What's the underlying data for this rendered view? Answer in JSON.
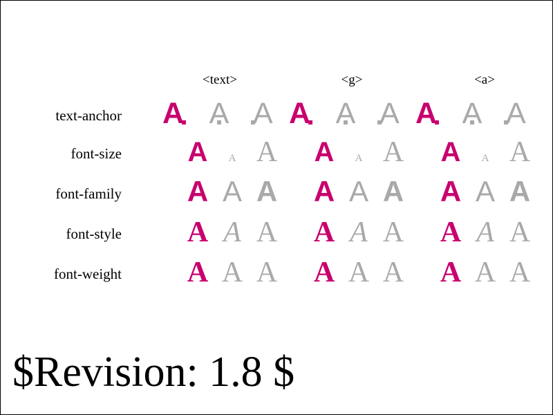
{
  "columns": [
    "<text>",
    "<g>",
    "<a>"
  ],
  "rows": [
    {
      "id": "text-anchor",
      "label": "text-anchor"
    },
    {
      "id": "font-size",
      "label": "font-size"
    },
    {
      "id": "font-family",
      "label": "font-family"
    },
    {
      "id": "font-style",
      "label": "font-style"
    },
    {
      "id": "font-weight",
      "label": "font-weight"
    }
  ],
  "glyph": "A",
  "colors": {
    "accent": "#C8006E",
    "muted": "#A9A9A9",
    "text": "#000000",
    "border": "#000000",
    "background": "#FFFFFF"
  },
  "revision": "$Revision: 1.8 $"
}
